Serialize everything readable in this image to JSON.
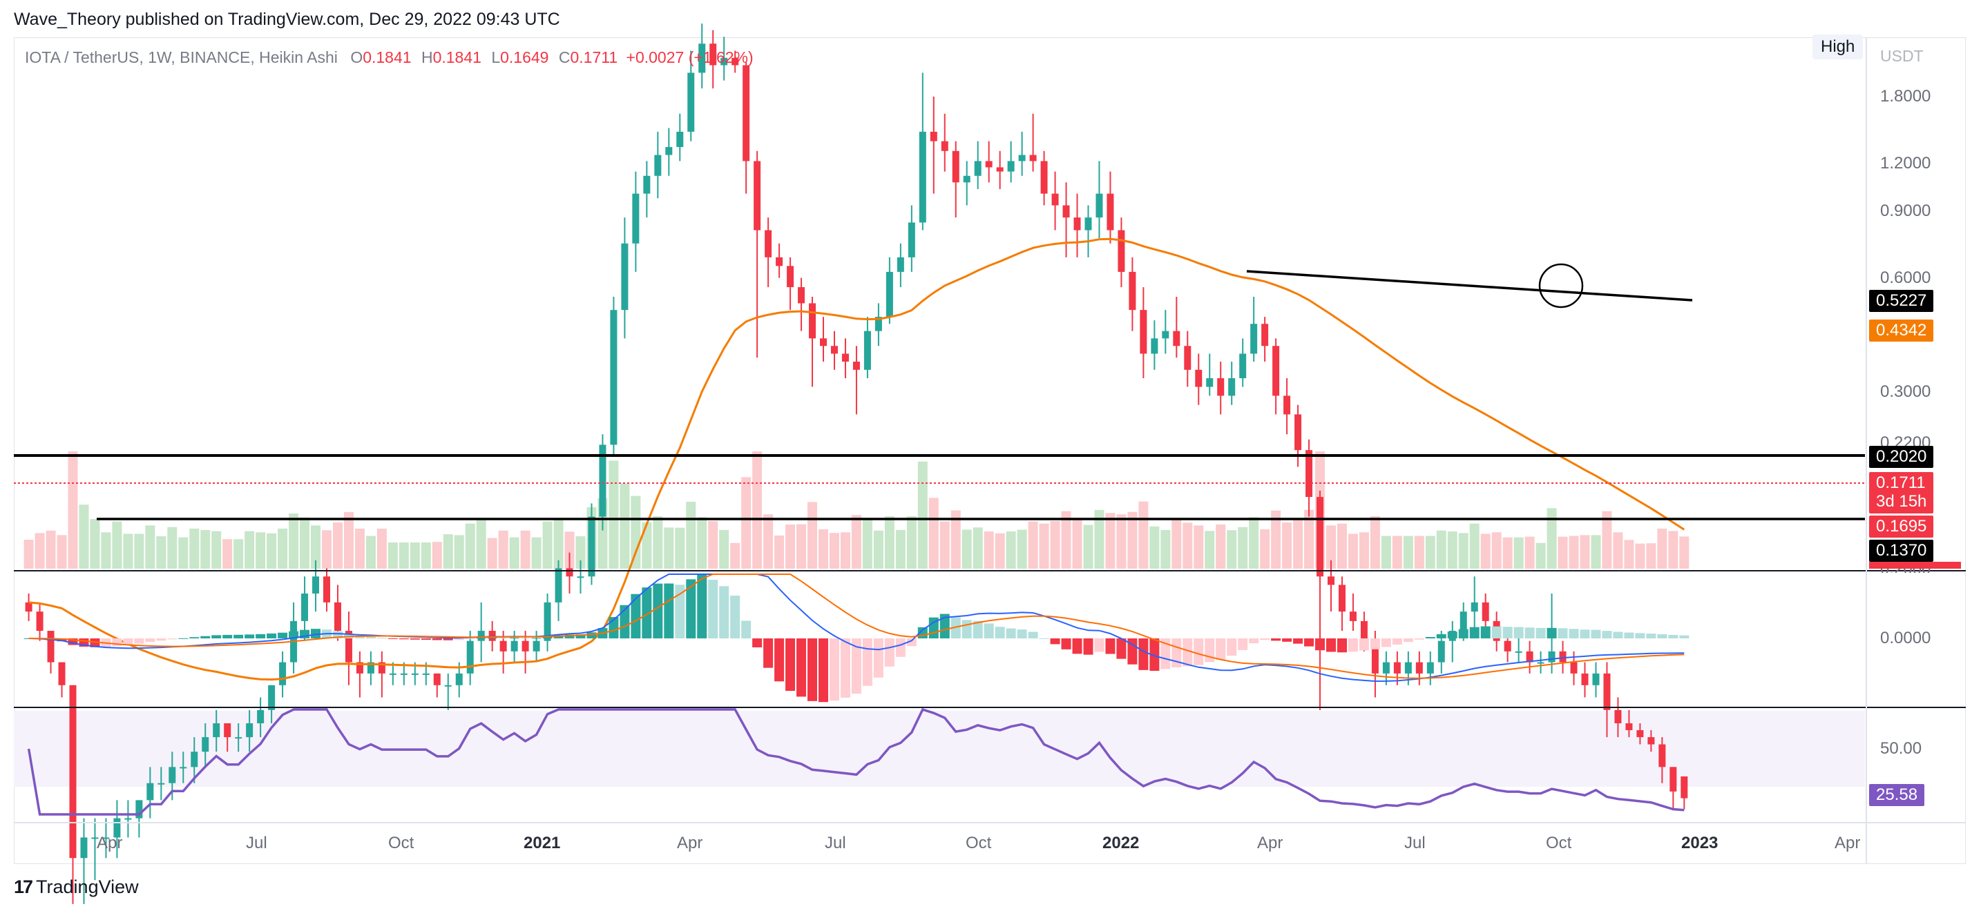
{
  "header": {
    "publisher_line": "Wave_Theory published on TradingView.com, Dec 29, 2022 09:43 UTC"
  },
  "legend": {
    "symbol": "IOTA / TetherUS, 1W, BINANCE, Heikin Ashi",
    "o_label": "O",
    "o_value": "0.1841",
    "h_label": "H",
    "h_value": "0.1841",
    "l_label": "L",
    "l_value": "0.1649",
    "c_label": "C",
    "c_value": "0.1711",
    "change": "+0.0027 (+1.62%)"
  },
  "price_scale": {
    "high_button": "High",
    "currency": "USDT",
    "labels": [
      "1.8000",
      "1.2000",
      "0.9000",
      "0.6000",
      "0.3000",
      "0.2200"
    ],
    "macd_label": "0.0000",
    "macd_top_cut": "0.2000",
    "rsi_label": "50.00"
  },
  "price_tags": {
    "black_trendline": "0.5227",
    "ema": "0.4342",
    "resistance": "0.2020",
    "last_price": "0.1711",
    "countdown": "3d 15h",
    "last_low": "0.1695",
    "support": "0.1370",
    "rsi_value": "25.58"
  },
  "time_axis": {
    "labels": [
      {
        "text": "Apr",
        "bold": false
      },
      {
        "text": "Jul",
        "bold": false
      },
      {
        "text": "Oct",
        "bold": false
      },
      {
        "text": "2021",
        "bold": true
      },
      {
        "text": "Apr",
        "bold": false
      },
      {
        "text": "Jul",
        "bold": false
      },
      {
        "text": "Oct",
        "bold": false
      },
      {
        "text": "2022",
        "bold": true
      },
      {
        "text": "Apr",
        "bold": false
      },
      {
        "text": "Jul",
        "bold": false
      },
      {
        "text": "Oct",
        "bold": false
      },
      {
        "text": "2023",
        "bold": true
      },
      {
        "text": "Apr",
        "bold": false
      }
    ]
  },
  "footer": {
    "logo_mark": "17",
    "brand": "TradingView"
  },
  "colors": {
    "bull": "#26a69a",
    "bear": "#f23645",
    "ema": "#f57c00",
    "trendline": "#000000",
    "macd_line": "#2962ff",
    "signal_line": "#ff6d00",
    "rsi": "#7e57c2",
    "vol_bull": "#c8e6c9",
    "vol_bear": "#fccbcd"
  },
  "chart_data": {
    "type": "candlestick",
    "title": "IOTA / TetherUS, 1W, BINANCE, Heikin Ashi",
    "y_scale": "log",
    "yaxis_ticks": [
      1.8,
      1.2,
      0.9,
      0.6,
      0.3,
      0.22
    ],
    "horizontal_lines": [
      {
        "price": 0.202,
        "color": "#000000"
      },
      {
        "price": 0.137,
        "color": "#000000"
      },
      {
        "price": 0.1711,
        "color": "#f23645",
        "style": "dotted"
      }
    ],
    "last": {
      "open": 0.1841,
      "high": 0.1841,
      "low": 0.1649,
      "close": 0.1711,
      "change": 0.0027,
      "change_pct": 1.62
    },
    "ema_last": 0.4342,
    "trendline_last": 0.5227,
    "x_ticks": [
      "Apr",
      "Jul",
      "Oct",
      "2021",
      "Apr",
      "Jul",
      "Oct",
      "2022",
      "Apr",
      "Jul",
      "Oct",
      "2023",
      "Apr"
    ],
    "x_range": [
      "2020-02",
      "2023-04"
    ],
    "ohlc_weekly": [
      [
        "2020-02-10",
        0.33,
        0.34,
        0.31,
        0.32
      ],
      [
        "2020-02-17",
        0.32,
        0.33,
        0.29,
        0.3
      ],
      [
        "2020-02-24",
        0.3,
        0.3,
        0.26,
        0.27
      ],
      [
        "2020-03-02",
        0.27,
        0.27,
        0.24,
        0.25
      ],
      [
        "2020-03-09",
        0.25,
        0.25,
        0.12,
        0.14
      ],
      [
        "2020-03-16",
        0.14,
        0.16,
        0.12,
        0.15
      ],
      [
        "2020-03-23",
        0.15,
        0.16,
        0.13,
        0.15
      ],
      [
        "2020-03-30",
        0.15,
        0.16,
        0.14,
        0.15
      ],
      [
        "2020-04-06",
        0.15,
        0.17,
        0.14,
        0.16
      ],
      [
        "2020-04-13",
        0.16,
        0.17,
        0.15,
        0.16
      ],
      [
        "2020-04-20",
        0.16,
        0.17,
        0.15,
        0.17
      ],
      [
        "2020-04-27",
        0.17,
        0.19,
        0.16,
        0.18
      ],
      [
        "2020-05-04",
        0.18,
        0.19,
        0.17,
        0.18
      ],
      [
        "2020-05-11",
        0.18,
        0.2,
        0.17,
        0.19
      ],
      [
        "2020-05-18",
        0.19,
        0.2,
        0.18,
        0.19
      ],
      [
        "2020-05-25",
        0.19,
        0.21,
        0.18,
        0.2
      ],
      [
        "2020-06-01",
        0.2,
        0.22,
        0.19,
        0.21
      ],
      [
        "2020-06-08",
        0.21,
        0.23,
        0.2,
        0.22
      ],
      [
        "2020-06-15",
        0.22,
        0.22,
        0.2,
        0.21
      ],
      [
        "2020-06-22",
        0.21,
        0.22,
        0.2,
        0.21
      ],
      [
        "2020-06-29",
        0.21,
        0.23,
        0.2,
        0.22
      ],
      [
        "2020-07-06",
        0.22,
        0.24,
        0.21,
        0.23
      ],
      [
        "2020-07-13",
        0.23,
        0.25,
        0.22,
        0.25
      ],
      [
        "2020-07-20",
        0.25,
        0.28,
        0.24,
        0.27
      ],
      [
        "2020-07-27",
        0.27,
        0.33,
        0.26,
        0.31
      ],
      [
        "2020-08-03",
        0.31,
        0.36,
        0.29,
        0.34
      ],
      [
        "2020-08-10",
        0.34,
        0.38,
        0.32,
        0.36
      ],
      [
        "2020-08-17",
        0.36,
        0.37,
        0.32,
        0.33
      ],
      [
        "2020-08-24",
        0.33,
        0.35,
        0.29,
        0.3
      ],
      [
        "2020-08-31",
        0.3,
        0.32,
        0.25,
        0.27
      ],
      [
        "2020-09-07",
        0.27,
        0.28,
        0.24,
        0.26
      ],
      [
        "2020-09-14",
        0.26,
        0.28,
        0.25,
        0.27
      ],
      [
        "2020-09-21",
        0.27,
        0.28,
        0.24,
        0.26
      ],
      [
        "2020-09-28",
        0.26,
        0.27,
        0.25,
        0.26
      ],
      [
        "2020-10-05",
        0.26,
        0.27,
        0.25,
        0.26
      ],
      [
        "2020-10-12",
        0.26,
        0.27,
        0.25,
        0.26
      ],
      [
        "2020-10-19",
        0.26,
        0.27,
        0.25,
        0.26
      ],
      [
        "2020-10-26",
        0.26,
        0.26,
        0.24,
        0.25
      ],
      [
        "2020-11-02",
        0.25,
        0.26,
        0.23,
        0.25
      ],
      [
        "2020-11-09",
        0.25,
        0.27,
        0.24,
        0.26
      ],
      [
        "2020-11-16",
        0.26,
        0.3,
        0.25,
        0.29
      ],
      [
        "2020-11-23",
        0.29,
        0.33,
        0.27,
        0.3
      ],
      [
        "2020-11-30",
        0.3,
        0.31,
        0.28,
        0.29
      ],
      [
        "2020-12-07",
        0.29,
        0.3,
        0.26,
        0.28
      ],
      [
        "2020-12-14",
        0.28,
        0.3,
        0.27,
        0.29
      ],
      [
        "2020-12-21",
        0.29,
        0.3,
        0.26,
        0.28
      ],
      [
        "2020-12-28",
        0.28,
        0.3,
        0.27,
        0.29
      ],
      [
        "2021-01-04",
        0.29,
        0.34,
        0.28,
        0.33
      ],
      [
        "2021-01-11",
        0.33,
        0.38,
        0.31,
        0.37
      ],
      [
        "2021-01-18",
        0.37,
        0.39,
        0.34,
        0.36
      ],
      [
        "2021-01-25",
        0.36,
        0.38,
        0.34,
        0.36
      ],
      [
        "2021-02-01",
        0.36,
        0.46,
        0.35,
        0.44
      ],
      [
        "2021-02-08",
        0.44,
        0.58,
        0.42,
        0.56
      ],
      [
        "2021-02-15",
        0.56,
        0.92,
        0.54,
        0.88
      ],
      [
        "2021-02-22",
        0.88,
        1.2,
        0.8,
        1.1
      ],
      [
        "2021-03-01",
        1.1,
        1.4,
        1.0,
        1.3
      ],
      [
        "2021-03-08",
        1.3,
        1.45,
        1.2,
        1.38
      ],
      [
        "2021-03-15",
        1.38,
        1.6,
        1.28,
        1.48
      ],
      [
        "2021-03-22",
        1.48,
        1.62,
        1.38,
        1.52
      ],
      [
        "2021-03-29",
        1.52,
        1.7,
        1.45,
        1.6
      ],
      [
        "2021-04-05",
        1.6,
        2.1,
        1.55,
        1.95
      ],
      [
        "2021-04-12",
        1.95,
        2.3,
        1.85,
        2.15
      ],
      [
        "2021-04-19",
        2.15,
        2.25,
        1.85,
        2.0
      ],
      [
        "2021-04-26",
        2.0,
        2.2,
        1.9,
        2.05
      ],
      [
        "2021-05-03",
        2.05,
        2.1,
        1.95,
        2.0
      ],
      [
        "2021-05-10",
        2.0,
        2.02,
        1.3,
        1.45
      ],
      [
        "2021-05-17",
        1.45,
        1.5,
        0.75,
        1.15
      ],
      [
        "2021-05-24",
        1.15,
        1.2,
        0.95,
        1.05
      ],
      [
        "2021-05-31",
        1.05,
        1.1,
        0.98,
        1.02
      ],
      [
        "2021-06-07",
        1.02,
        1.05,
        0.88,
        0.95
      ],
      [
        "2021-06-14",
        0.95,
        0.98,
        0.82,
        0.9
      ],
      [
        "2021-06-21",
        0.9,
        0.92,
        0.68,
        0.8
      ],
      [
        "2021-06-28",
        0.8,
        0.86,
        0.74,
        0.78
      ],
      [
        "2021-07-05",
        0.78,
        0.82,
        0.72,
        0.76
      ],
      [
        "2021-07-12",
        0.76,
        0.8,
        0.7,
        0.74
      ],
      [
        "2021-07-19",
        0.74,
        0.78,
        0.62,
        0.72
      ],
      [
        "2021-07-26",
        0.72,
        0.86,
        0.7,
        0.82
      ],
      [
        "2021-08-02",
        0.82,
        0.9,
        0.78,
        0.86
      ],
      [
        "2021-08-09",
        0.86,
        1.05,
        0.84,
        1.0
      ],
      [
        "2021-08-16",
        1.0,
        1.1,
        0.95,
        1.05
      ],
      [
        "2021-08-23",
        1.05,
        1.25,
        1.0,
        1.18
      ],
      [
        "2021-08-30",
        1.18,
        1.95,
        1.15,
        1.6
      ],
      [
        "2021-09-06",
        1.6,
        1.8,
        1.3,
        1.55
      ],
      [
        "2021-09-13",
        1.55,
        1.7,
        1.4,
        1.5
      ],
      [
        "2021-09-20",
        1.5,
        1.55,
        1.2,
        1.35
      ],
      [
        "2021-09-27",
        1.35,
        1.45,
        1.25,
        1.38
      ],
      [
        "2021-10-04",
        1.38,
        1.55,
        1.32,
        1.45
      ],
      [
        "2021-10-11",
        1.45,
        1.55,
        1.35,
        1.42
      ],
      [
        "2021-10-18",
        1.42,
        1.5,
        1.32,
        1.4
      ],
      [
        "2021-10-25",
        1.4,
        1.55,
        1.35,
        1.45
      ],
      [
        "2021-11-01",
        1.45,
        1.6,
        1.38,
        1.48
      ],
      [
        "2021-11-08",
        1.48,
        1.7,
        1.4,
        1.45
      ],
      [
        "2021-11-15",
        1.45,
        1.5,
        1.25,
        1.3
      ],
      [
        "2021-11-22",
        1.3,
        1.4,
        1.15,
        1.25
      ],
      [
        "2021-11-29",
        1.25,
        1.35,
        1.05,
        1.2
      ],
      [
        "2021-12-06",
        1.2,
        1.3,
        1.05,
        1.15
      ],
      [
        "2021-12-13",
        1.15,
        1.25,
        1.05,
        1.2
      ],
      [
        "2021-12-20",
        1.2,
        1.45,
        1.12,
        1.3
      ],
      [
        "2021-12-27",
        1.3,
        1.4,
        1.1,
        1.15
      ],
      [
        "2022-01-03",
        1.15,
        1.2,
        0.95,
        1.0
      ],
      [
        "2022-01-10",
        1.0,
        1.05,
        0.82,
        0.88
      ],
      [
        "2022-01-17",
        0.88,
        0.95,
        0.7,
        0.76
      ],
      [
        "2022-01-24",
        0.76,
        0.85,
        0.72,
        0.8
      ],
      [
        "2022-01-31",
        0.8,
        0.88,
        0.76,
        0.82
      ],
      [
        "2022-02-07",
        0.82,
        0.92,
        0.75,
        0.78
      ],
      [
        "2022-02-14",
        0.78,
        0.82,
        0.68,
        0.72
      ],
      [
        "2022-02-21",
        0.72,
        0.76,
        0.64,
        0.68
      ],
      [
        "2022-02-28",
        0.68,
        0.76,
        0.66,
        0.7
      ],
      [
        "2022-03-07",
        0.7,
        0.74,
        0.62,
        0.66
      ],
      [
        "2022-03-14",
        0.66,
        0.74,
        0.64,
        0.7
      ],
      [
        "2022-03-21",
        0.7,
        0.8,
        0.68,
        0.76
      ],
      [
        "2022-03-28",
        0.76,
        0.92,
        0.74,
        0.84
      ],
      [
        "2022-04-04",
        0.84,
        0.86,
        0.74,
        0.78
      ],
      [
        "2022-04-11",
        0.78,
        0.8,
        0.62,
        0.66
      ],
      [
        "2022-04-18",
        0.66,
        0.7,
        0.58,
        0.62
      ],
      [
        "2022-04-25",
        0.62,
        0.64,
        0.52,
        0.55
      ],
      [
        "2022-05-02",
        0.55,
        0.57,
        0.44,
        0.47
      ],
      [
        "2022-05-09",
        0.47,
        0.48,
        0.23,
        0.36
      ],
      [
        "2022-05-16",
        0.36,
        0.38,
        0.32,
        0.35
      ],
      [
        "2022-05-23",
        0.35,
        0.36,
        0.3,
        0.32
      ],
      [
        "2022-05-30",
        0.32,
        0.34,
        0.3,
        0.31
      ],
      [
        "2022-06-06",
        0.31,
        0.32,
        0.28,
        0.29
      ],
      [
        "2022-06-13",
        0.29,
        0.3,
        0.24,
        0.26
      ],
      [
        "2022-06-20",
        0.26,
        0.28,
        0.25,
        0.27
      ],
      [
        "2022-06-27",
        0.27,
        0.28,
        0.25,
        0.26
      ],
      [
        "2022-07-04",
        0.26,
        0.28,
        0.25,
        0.27
      ],
      [
        "2022-07-11",
        0.27,
        0.28,
        0.25,
        0.26
      ],
      [
        "2022-07-18",
        0.26,
        0.28,
        0.25,
        0.27
      ],
      [
        "2022-07-25",
        0.27,
        0.3,
        0.26,
        0.29
      ],
      [
        "2022-08-01",
        0.29,
        0.31,
        0.27,
        0.3
      ],
      [
        "2022-08-08",
        0.3,
        0.33,
        0.29,
        0.32
      ],
      [
        "2022-08-15",
        0.32,
        0.36,
        0.3,
        0.33
      ],
      [
        "2022-08-22",
        0.33,
        0.34,
        0.3,
        0.31
      ],
      [
        "2022-08-29",
        0.31,
        0.32,
        0.28,
        0.29
      ],
      [
        "2022-09-05",
        0.29,
        0.3,
        0.27,
        0.28
      ],
      [
        "2022-09-12",
        0.28,
        0.3,
        0.27,
        0.28
      ],
      [
        "2022-09-19",
        0.28,
        0.29,
        0.26,
        0.27
      ],
      [
        "2022-09-26",
        0.27,
        0.28,
        0.26,
        0.27
      ],
      [
        "2022-10-03",
        0.27,
        0.34,
        0.26,
        0.28
      ],
      [
        "2022-10-10",
        0.28,
        0.29,
        0.26,
        0.27
      ],
      [
        "2022-10-17",
        0.27,
        0.28,
        0.25,
        0.26
      ],
      [
        "2022-10-24",
        0.26,
        0.27,
        0.24,
        0.25
      ],
      [
        "2022-10-31",
        0.25,
        0.27,
        0.24,
        0.26
      ],
      [
        "2022-11-07",
        0.26,
        0.27,
        0.21,
        0.23
      ],
      [
        "2022-11-14",
        0.23,
        0.24,
        0.21,
        0.22
      ],
      [
        "2022-11-21",
        0.22,
        0.23,
        0.21,
        0.215
      ],
      [
        "2022-11-28",
        0.215,
        0.22,
        0.205,
        0.21
      ],
      [
        "2022-12-05",
        0.21,
        0.215,
        0.2,
        0.205
      ],
      [
        "2022-12-12",
        0.205,
        0.21,
        0.18,
        0.19
      ],
      [
        "2022-12-19",
        0.19,
        0.19,
        0.165,
        0.175
      ],
      [
        "2022-12-26",
        0.1841,
        0.1841,
        0.1649,
        0.1711
      ]
    ],
    "rsi_last": 25.58
  }
}
